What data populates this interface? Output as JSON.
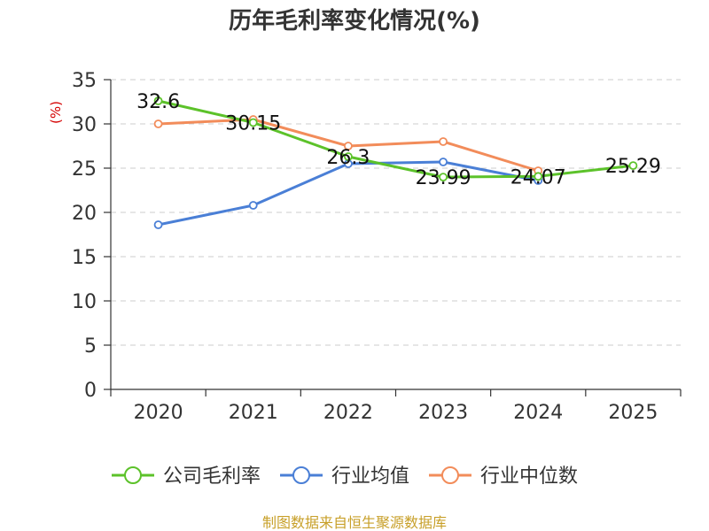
{
  "chart_data": {
    "type": "line",
    "title": "历年毛利率变化情况(%)",
    "ylabel": "(%)",
    "xlabel": "",
    "categories": [
      "2020",
      "2021",
      "2022",
      "2023",
      "2024",
      "2025"
    ],
    "ylim": [
      0,
      35
    ],
    "yticks": [
      "0",
      "5",
      "10",
      "15",
      "20",
      "25",
      "30",
      "35"
    ],
    "grid": true,
    "legend_position": "bottom",
    "series": [
      {
        "name": "公司毛利率",
        "color": "#5cc22a",
        "values": [
          32.6,
          30.15,
          26.3,
          23.99,
          24.07,
          25.29
        ],
        "labels": [
          "32.6",
          "30.15",
          "26.3",
          "23.99",
          "24.07",
          "25.29"
        ]
      },
      {
        "name": "行业均值",
        "color": "#4a7fd6",
        "values": [
          18.6,
          20.8,
          25.5,
          25.7,
          23.6,
          null
        ]
      },
      {
        "name": "行业中位数",
        "color": "#f28c5a",
        "values": [
          30.0,
          30.5,
          27.5,
          28.0,
          24.7,
          null
        ]
      }
    ],
    "source": "制图数据来自恒生聚源数据库"
  }
}
